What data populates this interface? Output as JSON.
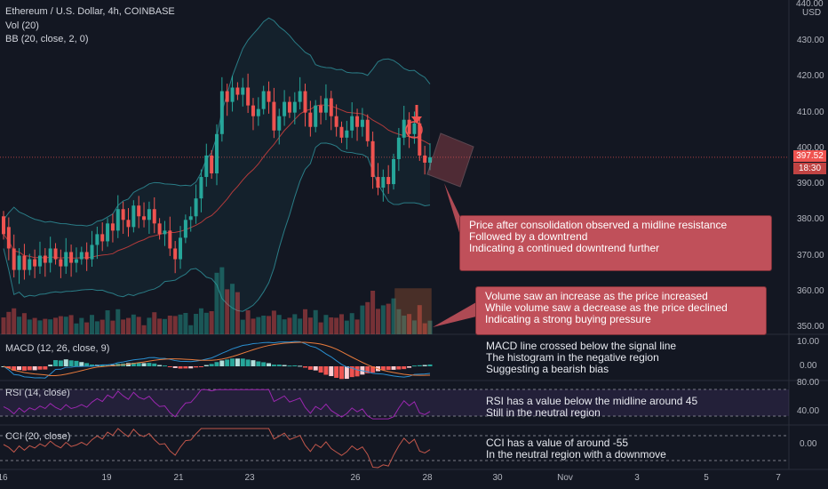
{
  "header": {
    "title": "Ethereum / U.S. Dollar, 4h, COINBASE",
    "vol_label": "Vol (20)",
    "bb_label": "BB (20, close, 2, 0)"
  },
  "price_axis": {
    "currency": "USD",
    "top_label": "440.00",
    "ticks": [
      "430.00",
      "420.00",
      "410.00",
      "400.00",
      "390.00",
      "380.00",
      "370.00",
      "360.00",
      "350.00"
    ],
    "current_price": "397.52",
    "countdown": "18:30"
  },
  "x_axis": {
    "ticks": [
      "16",
      "19",
      "21",
      "23",
      "26",
      "28",
      "30",
      "Nov",
      "3",
      "5",
      "7"
    ]
  },
  "panels": {
    "macd": {
      "label": "MACD (12, 26, close, 9)",
      "ticks": [
        "10.00",
        "0.00"
      ]
    },
    "rsi": {
      "label": "RSI (14, close)",
      "ticks": [
        "80.00",
        "40.00"
      ]
    },
    "cci": {
      "label": "CCI (20, close)",
      "ticks": [
        "0.00"
      ]
    }
  },
  "annotations": {
    "price_box": [
      "Price after consolidation observed a midline resistance",
      "Followed by a downtrend",
      "Indicating a continued downtrend further"
    ],
    "volume_box": [
      "Volume saw an increase as the price increased",
      "While volume saw a decrease as the price declined",
      "Indicating a strong buying pressure"
    ],
    "macd_note": [
      "MACD line crossed below the signal line",
      "The histogram in the negative region",
      "Suggesting a bearish bias"
    ],
    "rsi_note": [
      "RSI has a value below the midline around 45",
      "Still in the neutral region"
    ],
    "cci_note": [
      "CCI has a value of around -55",
      "In the neutral region with a downmove"
    ]
  },
  "colors": {
    "bg": "#131722",
    "up": "#26a69a",
    "down": "#ef5350",
    "annotation": "#c0505a",
    "rsi_line": "#9c27b0",
    "bb_band": "#2a7c86",
    "macd_line": "#2a8fd0",
    "signal_line": "#e87b3c",
    "cci_line": "#c2574b"
  },
  "chart_data": {
    "type": "candlestick",
    "symbol": "Ethereum / U.S. Dollar",
    "interval": "4h",
    "exchange": "COINBASE",
    "ylim": [
      348,
      440
    ],
    "last_price": 397.52,
    "candles": [
      [
        381,
        376
      ],
      [
        378,
        372
      ],
      [
        372,
        366
      ],
      [
        366,
        370
      ],
      [
        370,
        366
      ],
      [
        366,
        369
      ],
      [
        369,
        367
      ],
      [
        367,
        370
      ],
      [
        370,
        368
      ],
      [
        368,
        372
      ],
      [
        372,
        369
      ],
      [
        369,
        367
      ],
      [
        367,
        371
      ],
      [
        371,
        368
      ],
      [
        368,
        369
      ],
      [
        369,
        371
      ],
      [
        371,
        369
      ],
      [
        369,
        373
      ],
      [
        373,
        376
      ],
      [
        376,
        374
      ],
      [
        374,
        379
      ],
      [
        379,
        377
      ],
      [
        377,
        383
      ],
      [
        383,
        380
      ],
      [
        380,
        378
      ],
      [
        378,
        384
      ],
      [
        384,
        381
      ],
      [
        381,
        380
      ],
      [
        380,
        383
      ],
      [
        383,
        379
      ],
      [
        379,
        376
      ],
      [
        376,
        377
      ],
      [
        377,
        372
      ],
      [
        372,
        369
      ],
      [
        369,
        375
      ],
      [
        375,
        380
      ],
      [
        380,
        381
      ],
      [
        381,
        386
      ],
      [
        386,
        392
      ],
      [
        392,
        398
      ],
      [
        398,
        393
      ],
      [
        393,
        404
      ],
      [
        404,
        416
      ],
      [
        416,
        413
      ],
      [
        413,
        417
      ],
      [
        417,
        415
      ],
      [
        415,
        417
      ],
      [
        417,
        412
      ],
      [
        412,
        409
      ],
      [
        409,
        411
      ],
      [
        411,
        416
      ],
      [
        416,
        413
      ],
      [
        413,
        405
      ],
      [
        405,
        409
      ],
      [
        409,
        413
      ],
      [
        413,
        410
      ],
      [
        410,
        413
      ],
      [
        413,
        416
      ],
      [
        416,
        410
      ],
      [
        410,
        406
      ],
      [
        406,
        412
      ],
      [
        412,
        410
      ],
      [
        410,
        414
      ],
      [
        414,
        409
      ],
      [
        409,
        406
      ],
      [
        406,
        403
      ],
      [
        403,
        405
      ],
      [
        405,
        409
      ],
      [
        409,
        406
      ],
      [
        406,
        408
      ],
      [
        408,
        402
      ],
      [
        402,
        392
      ],
      [
        392,
        389
      ],
      [
        389,
        392
      ],
      [
        392,
        390
      ],
      [
        390,
        397
      ],
      [
        397,
        403
      ],
      [
        403,
        408
      ],
      [
        408,
        404
      ],
      [
        404,
        407
      ],
      [
        407,
        398
      ],
      [
        398,
        396
      ],
      [
        396,
        397.52
      ]
    ],
    "price_levels": [
      350,
      360,
      370,
      380,
      390,
      400,
      410,
      420,
      430
    ],
    "macd_ylim": [
      -5,
      12
    ],
    "rsi_ylim": [
      20,
      90
    ],
    "rsi_last": 45,
    "cci_last": -55
  }
}
